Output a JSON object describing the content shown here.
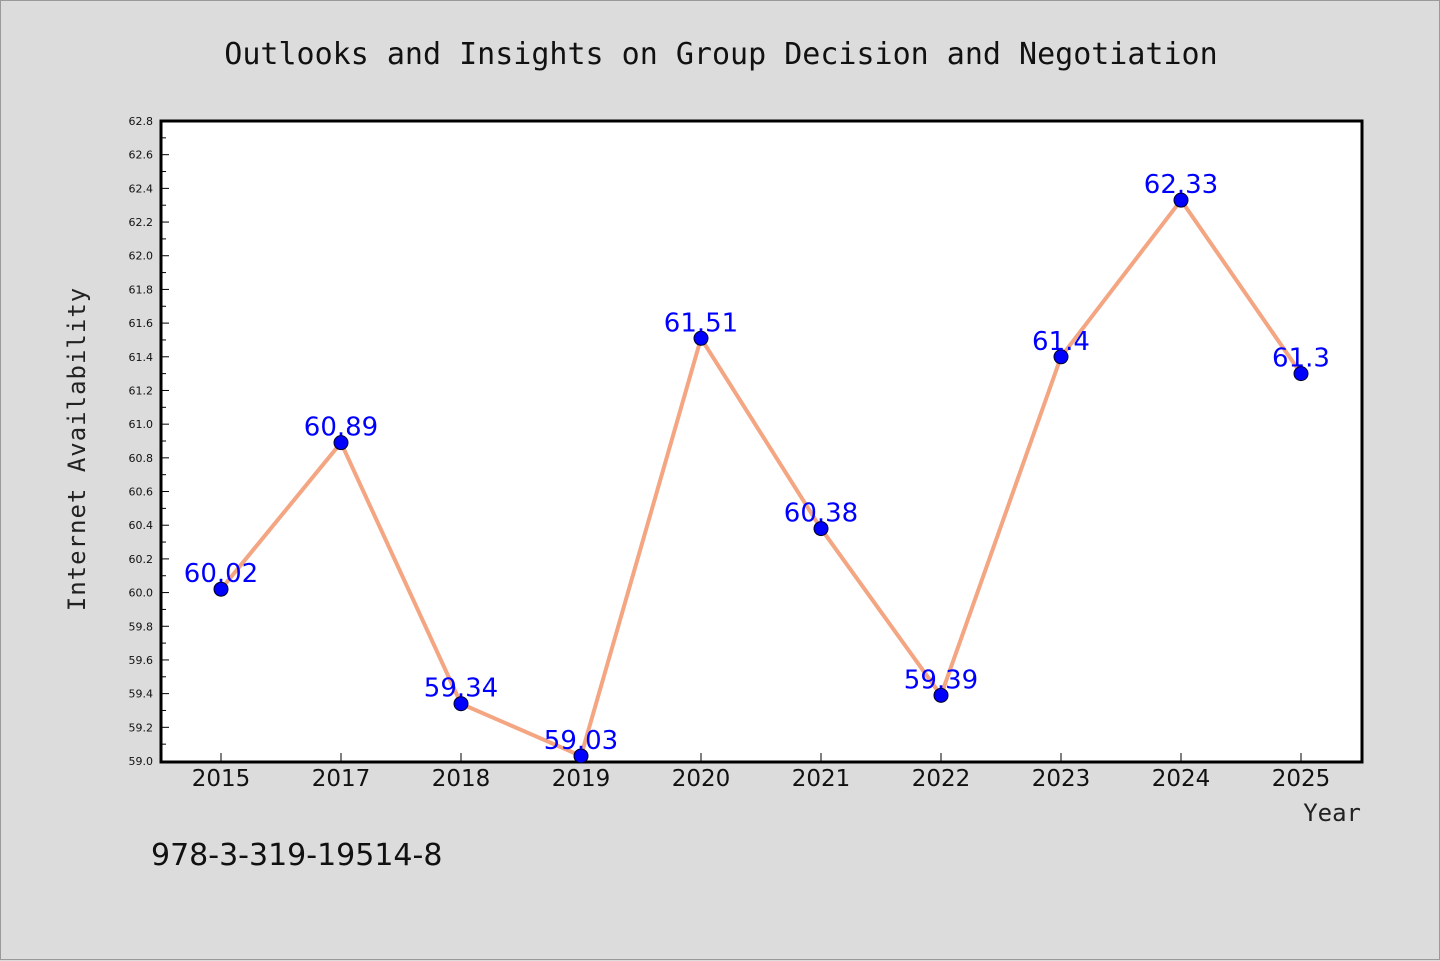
{
  "colors": {
    "background": "#dcdcdc",
    "plot_background": "#ffffff",
    "line": "#f4a582",
    "marker": "#0000ff",
    "data_label": "#0000ff"
  },
  "footer": {
    "isbn": "978-3-319-19514-8"
  },
  "chart_data": {
    "type": "line",
    "title": "Outlooks and Insights on Group Decision and Negotiation",
    "xlabel": "Year",
    "ylabel": "Internet Availability",
    "categories": [
      "2015",
      "2017",
      "2018",
      "2019",
      "2020",
      "2021",
      "2022",
      "2023",
      "2024",
      "2025"
    ],
    "values": [
      60.02,
      60.89,
      59.34,
      59.03,
      61.51,
      60.38,
      59.39,
      61.4,
      62.33,
      61.3
    ],
    "data_labels": [
      "60.02",
      "60.89",
      "59.34",
      "59.03",
      "61.51",
      "60.38",
      "59.39",
      "61.4",
      "62.33",
      "61.3"
    ],
    "ylim": [
      59.0,
      62.8
    ],
    "yticks": [
      "59.0",
      "59.2",
      "59.4",
      "59.6",
      "59.8",
      "60.0",
      "60.2",
      "60.4",
      "60.6",
      "60.8",
      "61.0",
      "61.2",
      "61.4",
      "61.6",
      "61.8",
      "62.0",
      "62.2",
      "62.4",
      "62.6",
      "62.8"
    ],
    "grid": false,
    "legend": "none"
  }
}
